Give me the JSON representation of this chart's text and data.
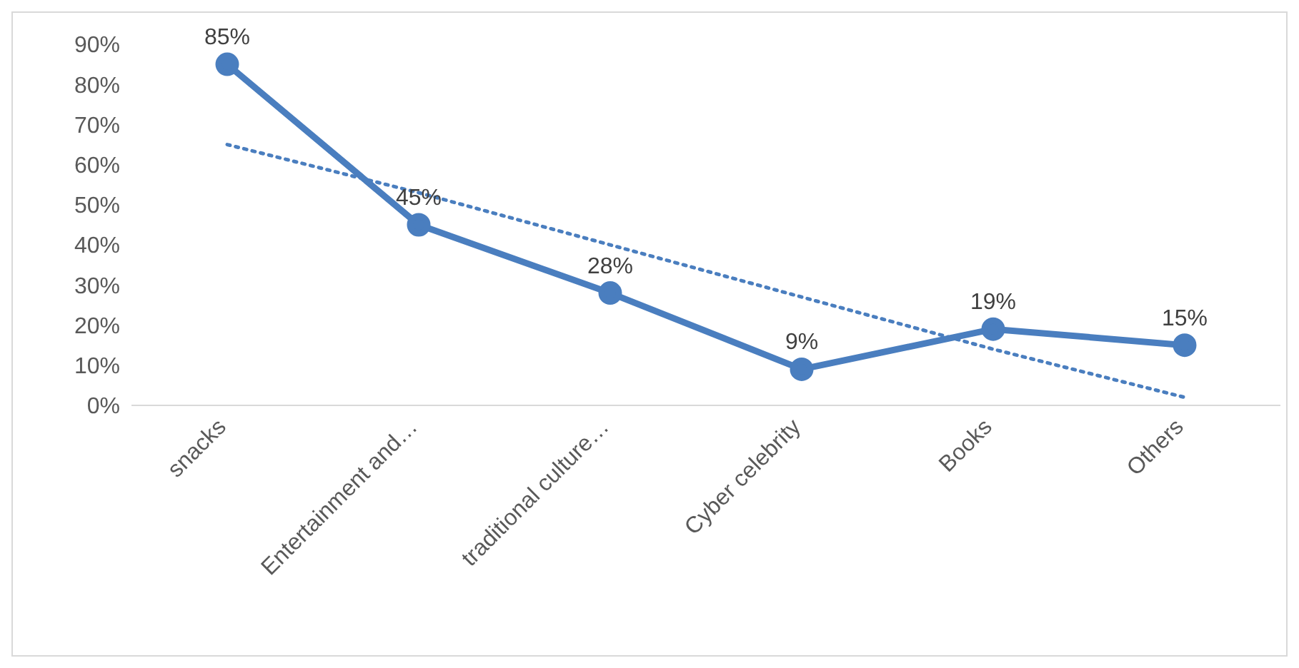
{
  "chart_data": {
    "type": "line",
    "categories": [
      "snacks",
      "Entertainment and…",
      "traditional culture…",
      "Cyber celebrity",
      "Books",
      "Others"
    ],
    "ylim": [
      0,
      90
    ],
    "yticks": [
      {
        "value": 0,
        "label": "0%"
      },
      {
        "value": 10,
        "label": "10%"
      },
      {
        "value": 20,
        "label": "20%"
      },
      {
        "value": 30,
        "label": "30%"
      },
      {
        "value": 40,
        "label": "40%"
      },
      {
        "value": 50,
        "label": "50%"
      },
      {
        "value": 60,
        "label": "60%"
      },
      {
        "value": 70,
        "label": "70%"
      },
      {
        "value": 80,
        "label": "80%"
      },
      {
        "value": 90,
        "label": "90%"
      }
    ],
    "series": [
      {
        "color": "#4a7ebf",
        "values": [
          85,
          45,
          28,
          9,
          19,
          15
        ],
        "value_labels": [
          "85%",
          "45%",
          "28%",
          "9%",
          "19%",
          "15%"
        ],
        "marker": "circle",
        "line_style": "solid"
      },
      {
        "color": "#4a7ebf",
        "values": [
          65,
          53,
          40,
          27,
          14,
          2
        ],
        "marker": "none",
        "line_style": "dotted"
      }
    ]
  }
}
